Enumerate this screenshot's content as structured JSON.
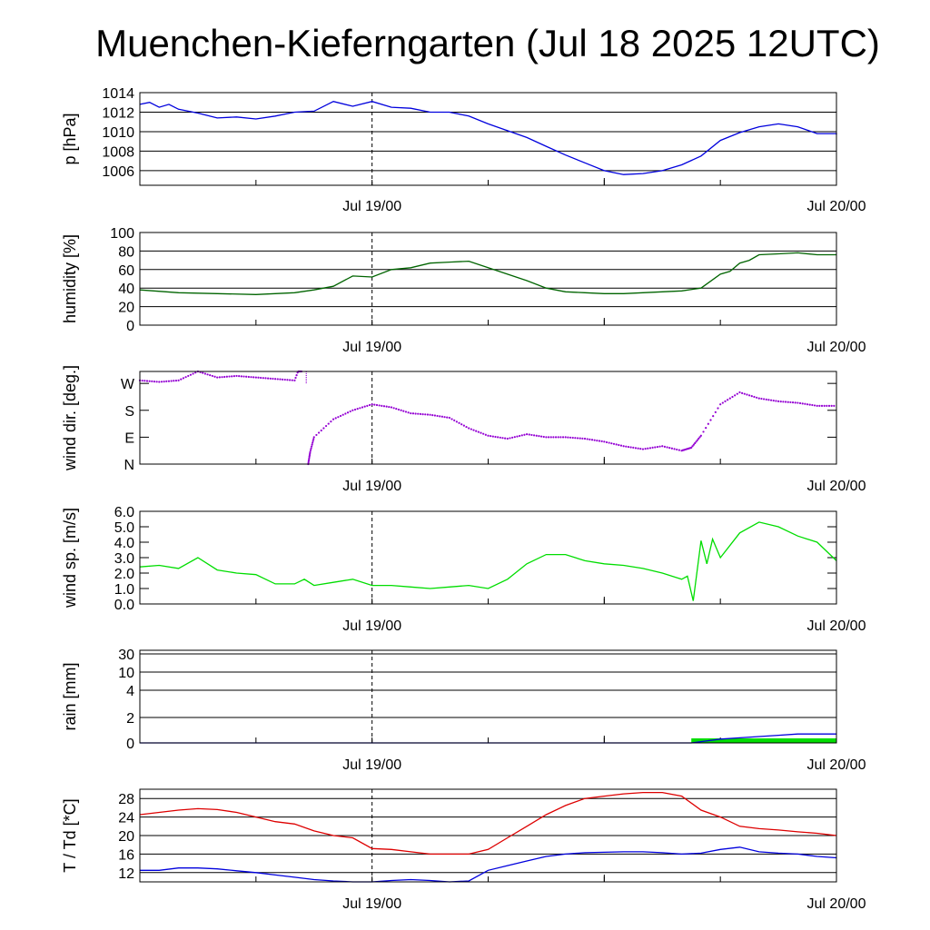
{
  "title": "Muenchen-Kieferngarten (Jul 18 2025 12UTC)",
  "chart_data": [
    {
      "id": "pressure",
      "type": "line",
      "ylabel": "p [hPa]",
      "ylim": [
        1004.5,
        1014
      ],
      "ytick_labels": [
        "1014",
        "1012",
        "1010",
        "1008",
        "1006"
      ],
      "ytick_values": [
        1014,
        1012,
        1010,
        1008,
        1006
      ],
      "grid_y": true,
      "x": [
        0,
        0.5,
        1,
        1.5,
        2,
        3,
        4,
        5,
        6,
        7,
        8,
        9,
        10,
        11,
        12,
        13,
        14,
        15,
        16,
        17,
        18,
        19,
        20,
        21,
        22,
        23,
        24,
        25,
        26,
        27,
        28,
        29,
        30,
        31,
        32,
        33,
        34,
        35,
        36,
        36,
        36
      ],
      "series": [
        {
          "color": "#0000dd",
          "values": [
            1012.8,
            1013,
            1012.5,
            1012.8,
            1012.3,
            1011.9,
            1011.4,
            1011.5,
            1011.3,
            1011.6,
            1012,
            1012.1,
            1013.1,
            1012.6,
            1013.1,
            1012.5,
            1012.4,
            1012.0,
            1012.0,
            1011.6,
            1010.8,
            1010.1,
            1009.4,
            1008.5,
            1007.6,
            1006.8,
            1006.0,
            1005.6,
            1005.7,
            1006.0,
            1006.6,
            1007.5,
            1009.1,
            1009.9,
            1010.5,
            1010.8,
            1010.5,
            1009.8,
            1009.8,
            1009.7,
            1009.7
          ]
        }
      ]
    },
    {
      "id": "humidity",
      "type": "line",
      "ylabel": "humidity [%]",
      "ylim": [
        0,
        100
      ],
      "ytick_labels": [
        "100",
        "80",
        "60",
        "40",
        "20",
        "0"
      ],
      "ytick_values": [
        100,
        80,
        60,
        40,
        20,
        0
      ],
      "grid_y": true,
      "x": [
        0,
        2,
        4,
        6,
        8,
        9,
        10,
        11,
        12,
        13,
        14,
        15,
        16,
        17,
        18,
        19,
        20,
        21,
        22,
        23,
        24,
        25,
        26,
        27,
        28,
        29,
        30,
        30.5,
        31,
        31.5,
        32,
        33,
        34,
        35,
        36
      ],
      "series": [
        {
          "color": "#006400",
          "values": [
            38,
            35,
            34,
            33,
            35,
            38,
            42,
            53,
            52,
            60,
            62,
            67,
            68,
            69,
            62,
            55,
            48,
            40,
            36,
            35,
            34,
            34,
            35,
            36,
            37,
            40,
            55,
            58,
            67,
            70,
            76,
            77,
            78,
            76,
            76
          ]
        }
      ]
    },
    {
      "id": "wind_dir",
      "type": "scatter",
      "ylabel": "wind dir. [deg.]",
      "ylim": [
        0,
        310
      ],
      "ytick_labels": [
        "W",
        "S",
        "E",
        "N"
      ],
      "ytick_values": [
        270,
        180,
        90,
        0
      ],
      "grid_y": false,
      "x": [
        0,
        1,
        2,
        3,
        4,
        5,
        6,
        7,
        8,
        8.4,
        8.7,
        8.8,
        9,
        10,
        11,
        12,
        13,
        14,
        15,
        16,
        17,
        18,
        19,
        20,
        21,
        22,
        23,
        24,
        25,
        26,
        27,
        28,
        28.5,
        29,
        30,
        31,
        32,
        33,
        34,
        35,
        36
      ],
      "series": [
        {
          "color": "#9400d3",
          "values": [
            280,
            275,
            280,
            310,
            290,
            295,
            290,
            285,
            280,
            350,
            0,
            40,
            90,
            150,
            180,
            200,
            190,
            170,
            165,
            155,
            120,
            95,
            85,
            100,
            90,
            90,
            85,
            75,
            60,
            50,
            60,
            45,
            55,
            95,
            200,
            240,
            220,
            210,
            205,
            195,
            195
          ]
        }
      ]
    },
    {
      "id": "wind_speed",
      "type": "line",
      "ylabel": "wind sp. [m/s]",
      "ylim": [
        0,
        6
      ],
      "ytick_labels": [
        "6.0",
        "5.0",
        "4.0",
        "3.0",
        "2.0",
        "1.0",
        "0.0"
      ],
      "ytick_values": [
        6,
        5,
        4,
        3,
        2,
        1,
        0
      ],
      "grid_y": false,
      "x": [
        0,
        1,
        2,
        3,
        4,
        5,
        6,
        7,
        8,
        8.5,
        9,
        10,
        11,
        12,
        13,
        14,
        15,
        16,
        17,
        18,
        19,
        20,
        21,
        22,
        23,
        24,
        25,
        26,
        27,
        28,
        28.3,
        28.6,
        29,
        29.3,
        29.6,
        30,
        31,
        32,
        33,
        34,
        35,
        36
      ],
      "series": [
        {
          "color": "#00dd00",
          "values": [
            2.4,
            2.5,
            2.3,
            3.0,
            2.2,
            2.0,
            1.9,
            1.3,
            1.3,
            1.6,
            1.2,
            1.4,
            1.6,
            1.2,
            1.2,
            1.1,
            1.0,
            1.1,
            1.2,
            1.0,
            1.6,
            2.6,
            3.2,
            3.2,
            2.8,
            2.6,
            2.5,
            2.3,
            2.0,
            1.6,
            1.8,
            0.2,
            4.1,
            2.6,
            4.2,
            3.0,
            4.6,
            5.3,
            5.0,
            4.4,
            4.0,
            2.8
          ]
        }
      ]
    },
    {
      "id": "rain",
      "type": "area",
      "ylabel": "rain [mm]",
      "ylim": [
        0,
        30
      ],
      "ytick_labels": [
        "30",
        "10",
        "4",
        "2",
        "0"
      ],
      "ytick_values": [
        30,
        10,
        4,
        2,
        0
      ],
      "grid_y": true,
      "x": [
        0,
        28.5,
        29,
        30,
        31,
        32,
        33,
        34,
        35,
        36
      ],
      "series": [
        {
          "color": "#00dd00",
          "kind": "bars",
          "values": [
            0,
            0.3,
            0.3,
            0.3,
            0.3,
            0.3,
            0.3,
            0.3,
            0.3,
            0.3
          ]
        },
        {
          "color": "#0000dd",
          "kind": "line",
          "values": [
            0,
            0,
            0.1,
            0.3,
            0.4,
            0.5,
            0.6,
            0.7,
            0.7,
            0.7
          ]
        }
      ]
    },
    {
      "id": "temperature",
      "type": "line",
      "ylabel": "T / Td [*C]",
      "ylim": [
        10,
        30
      ],
      "ytick_labels": [
        "28",
        "24",
        "20",
        "16",
        "12"
      ],
      "ytick_values": [
        28,
        24,
        20,
        16,
        12
      ],
      "grid_y": true,
      "x": [
        0,
        1,
        2,
        3,
        4,
        5,
        6,
        7,
        8,
        9,
        10,
        11,
        12,
        13,
        14,
        15,
        16,
        17,
        18,
        19,
        20,
        21,
        22,
        23,
        24,
        25,
        26,
        27,
        28,
        29,
        30,
        31,
        32,
        33,
        34,
        35,
        36
      ],
      "series": [
        {
          "color": "#dd0000",
          "values": [
            24.5,
            25,
            25.5,
            25.8,
            25.6,
            25,
            24,
            23,
            22.5,
            21,
            20,
            19.5,
            17.2,
            17,
            16.5,
            16,
            16,
            16,
            17,
            19.5,
            22,
            24.5,
            26.5,
            28,
            28.5,
            29,
            29.3,
            29.3,
            28.5,
            25.5,
            24,
            22,
            21.5,
            21.2,
            20.8,
            20.5,
            20.0
          ]
        },
        {
          "color": "#0000dd",
          "values": [
            12.5,
            12.5,
            13,
            13,
            12.8,
            12.4,
            12,
            11.5,
            11,
            10.5,
            10.2,
            10.0,
            10.0,
            10.3,
            10.5,
            10.3,
            10.0,
            10.2,
            12.5,
            13.5,
            14.5,
            15.5,
            16,
            16.3,
            16.4,
            16.5,
            16.5,
            16.3,
            16.0,
            16.2,
            17,
            17.5,
            16.5,
            16.2,
            16.0,
            15.5,
            15.2
          ]
        }
      ]
    }
  ],
  "xaxis": {
    "tick_labels": [
      "Jul 19/00",
      "Jul 20/00"
    ],
    "tick_hours": [
      12,
      36
    ]
  }
}
